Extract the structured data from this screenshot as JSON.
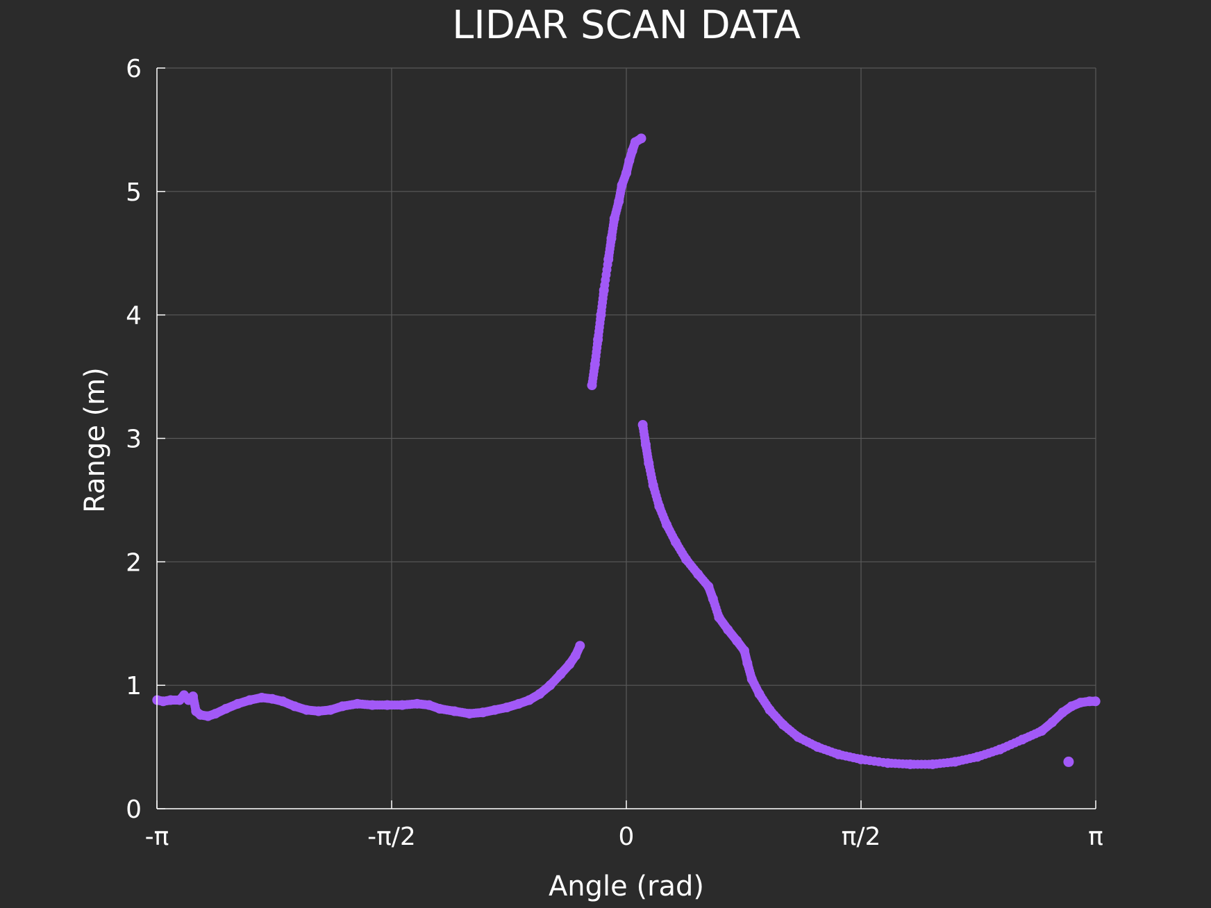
{
  "chart_data": {
    "type": "scatter",
    "title": "LIDAR SCAN DATA",
    "xlabel": "Angle (rad)",
    "ylabel": "Range (m)",
    "xlim": [
      -3.14159,
      3.14159
    ],
    "ylim": [
      0,
      6
    ],
    "xticks": [
      {
        "value": -3.14159,
        "label": "-π"
      },
      {
        "value": -1.5708,
        "label": "-π/2"
      },
      {
        "value": 0,
        "label": "0"
      },
      {
        "value": 1.5708,
        "label": "π/2"
      },
      {
        "value": 3.14159,
        "label": "π"
      }
    ],
    "yticks": [
      {
        "value": 0,
        "label": "0"
      },
      {
        "value": 1,
        "label": "1"
      },
      {
        "value": 2,
        "label": "2"
      },
      {
        "value": 3,
        "label": "3"
      },
      {
        "value": 4,
        "label": "4"
      },
      {
        "value": 5,
        "label": "5"
      },
      {
        "value": 6,
        "label": "6"
      }
    ],
    "grid": true,
    "marker_color": "#a259f7",
    "background_color": "#2b2b2b",
    "grid_color": "#5a5a5a",
    "series": [
      {
        "points": [
          [
            -3.14,
            0.88
          ],
          [
            -3.1,
            0.87
          ],
          [
            -3.05,
            0.88
          ],
          [
            -2.99,
            0.88
          ],
          [
            -2.96,
            0.92
          ],
          [
            -2.93,
            0.88
          ],
          [
            -2.9,
            0.91
          ],
          [
            -2.88,
            0.79
          ],
          [
            -2.85,
            0.76
          ],
          [
            -2.8,
            0.75
          ],
          [
            -2.75,
            0.77
          ],
          [
            -2.68,
            0.81
          ],
          [
            -2.6,
            0.85
          ],
          [
            -2.52,
            0.88
          ],
          [
            -2.44,
            0.9
          ],
          [
            -2.37,
            0.89
          ],
          [
            -2.3,
            0.87
          ],
          [
            -2.22,
            0.83
          ],
          [
            -2.14,
            0.8
          ],
          [
            -2.06,
            0.79
          ],
          [
            -1.98,
            0.8
          ],
          [
            -1.9,
            0.83
          ],
          [
            -1.8,
            0.85
          ],
          [
            -1.7,
            0.84
          ],
          [
            -1.6,
            0.84
          ],
          [
            -1.5,
            0.84
          ],
          [
            -1.4,
            0.85
          ],
          [
            -1.32,
            0.84
          ],
          [
            -1.25,
            0.81
          ],
          [
            -1.15,
            0.79
          ],
          [
            -1.05,
            0.77
          ],
          [
            -0.96,
            0.78
          ],
          [
            -0.88,
            0.8
          ],
          [
            -0.8,
            0.82
          ],
          [
            -0.72,
            0.85
          ],
          [
            -0.65,
            0.88
          ],
          [
            -0.58,
            0.93
          ],
          [
            -0.51,
            1.0
          ],
          [
            -0.44,
            1.09
          ],
          [
            -0.38,
            1.17
          ],
          [
            -0.34,
            1.24
          ],
          [
            -0.31,
            1.32
          ]
        ]
      },
      {
        "points": [
          [
            -0.23,
            3.43
          ],
          [
            -0.21,
            3.6
          ],
          [
            -0.19,
            3.8
          ],
          [
            -0.17,
            4.0
          ],
          [
            -0.15,
            4.2
          ],
          [
            -0.12,
            4.45
          ],
          [
            -0.1,
            4.62
          ],
          [
            -0.08,
            4.78
          ],
          [
            -0.05,
            4.92
          ],
          [
            -0.03,
            5.05
          ],
          [
            0.0,
            5.15
          ],
          [
            0.02,
            5.25
          ],
          [
            0.04,
            5.33
          ],
          [
            0.06,
            5.4
          ],
          [
            0.1,
            5.43
          ]
        ]
      },
      {
        "points": [
          [
            0.11,
            3.11
          ],
          [
            0.13,
            2.95
          ],
          [
            0.15,
            2.8
          ],
          [
            0.18,
            2.62
          ],
          [
            0.22,
            2.45
          ],
          [
            0.27,
            2.3
          ],
          [
            0.33,
            2.16
          ],
          [
            0.4,
            2.02
          ],
          [
            0.48,
            1.9
          ],
          [
            0.55,
            1.8
          ],
          [
            0.58,
            1.7
          ],
          [
            0.62,
            1.55
          ],
          [
            0.68,
            1.45
          ],
          [
            0.74,
            1.36
          ],
          [
            0.79,
            1.28
          ],
          [
            0.81,
            1.18
          ],
          [
            0.84,
            1.05
          ],
          [
            0.89,
            0.93
          ],
          [
            0.96,
            0.8
          ],
          [
            1.05,
            0.68
          ],
          [
            1.15,
            0.58
          ],
          [
            1.28,
            0.5
          ],
          [
            1.42,
            0.44
          ],
          [
            1.57,
            0.4
          ],
          [
            1.75,
            0.37
          ],
          [
            1.9,
            0.36
          ],
          [
            2.05,
            0.36
          ],
          [
            2.2,
            0.38
          ],
          [
            2.35,
            0.42
          ],
          [
            2.5,
            0.48
          ],
          [
            2.65,
            0.56
          ],
          [
            2.78,
            0.63
          ],
          [
            2.85,
            0.7
          ],
          [
            2.92,
            0.78
          ],
          [
            2.98,
            0.83
          ],
          [
            3.04,
            0.86
          ],
          [
            3.1,
            0.87
          ],
          [
            3.14,
            0.87
          ],
          [
            2.96,
            0.38
          ]
        ]
      }
    ]
  }
}
